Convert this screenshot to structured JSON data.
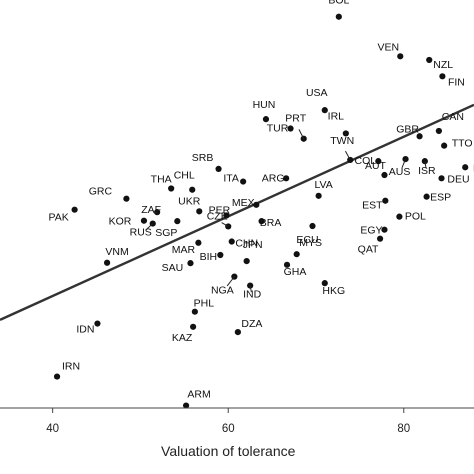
{
  "chart_data": {
    "type": "scatter",
    "title": "",
    "xlabel": "Valuation of tolerance",
    "ylabel": "",
    "xlim": [
      34,
      88
    ],
    "ylim": [
      0,
      1
    ],
    "x_ticks": [
      40,
      60,
      80
    ],
    "y_ticks": [],
    "grid": false,
    "legend": "none",
    "colors": {
      "point": "#111111",
      "line": "#333333",
      "axis": "#444444"
    },
    "fit_line": {
      "x": [
        34,
        88
      ],
      "y": [
        0.216,
        0.743
      ]
    },
    "points": [
      {
        "label": "BOL",
        "x": 72.6,
        "y": 0.959
      },
      {
        "label": "VEN",
        "x": 79.6,
        "y": 0.862
      },
      {
        "label": "NZL",
        "x": 82.9,
        "y": 0.853
      },
      {
        "label": "FIN",
        "x": 84.4,
        "y": 0.813
      },
      {
        "label": "HUN",
        "x": 64.3,
        "y": 0.708
      },
      {
        "label": "USA",
        "x": 71.0,
        "y": 0.73
      },
      {
        "label": "TUR",
        "x": 67.1,
        "y": 0.685
      },
      {
        "label": "PRT",
        "x": 68.6,
        "y": 0.66
      },
      {
        "label": "IRL",
        "x": 73.4,
        "y": 0.673
      },
      {
        "label": "GBR",
        "x": 81.8,
        "y": 0.666
      },
      {
        "label": "CAN",
        "x": 84.0,
        "y": 0.679
      },
      {
        "label": "TWN",
        "x": 73.9,
        "y": 0.608
      },
      {
        "label": "TTO",
        "x": 84.6,
        "y": 0.643
      },
      {
        "label": "SRB",
        "x": 58.9,
        "y": 0.586
      },
      {
        "label": "COL",
        "x": 77.1,
        "y": 0.605
      },
      {
        "label": "ISR",
        "x": 82.4,
        "y": 0.605
      },
      {
        "label": "NI",
        "x": 87.0,
        "y": 0.59
      },
      {
        "label": "THA",
        "x": 53.5,
        "y": 0.538
      },
      {
        "label": "CHL",
        "x": 55.9,
        "y": 0.535
      },
      {
        "label": "ITA",
        "x": 61.7,
        "y": 0.555
      },
      {
        "label": "ARG",
        "x": 66.6,
        "y": 0.563
      },
      {
        "label": "AUT",
        "x": 77.8,
        "y": 0.571
      },
      {
        "label": "AUS",
        "x": 80.2,
        "y": 0.61
      },
      {
        "label": "DEU",
        "x": 84.3,
        "y": 0.563
      },
      {
        "label": "GRC",
        "x": 48.4,
        "y": 0.513
      },
      {
        "label": "MEX",
        "x": 63.2,
        "y": 0.498
      },
      {
        "label": "LVA",
        "x": 70.3,
        "y": 0.52
      },
      {
        "label": "EST",
        "x": 77.9,
        "y": 0.508
      },
      {
        "label": "ESP",
        "x": 82.6,
        "y": 0.518
      },
      {
        "label": "PAK",
        "x": 42.5,
        "y": 0.486
      },
      {
        "label": "ZAF",
        "x": 51.9,
        "y": 0.48
      },
      {
        "label": "UKR",
        "x": 56.7,
        "y": 0.482
      },
      {
        "label": "PER",
        "x": 59.8,
        "y": 0.472
      },
      {
        "label": "KOR",
        "x": 50.4,
        "y": 0.459
      },
      {
        "label": "RUS",
        "x": 51.4,
        "y": 0.452
      },
      {
        "label": "SGP",
        "x": 54.2,
        "y": 0.458
      },
      {
        "label": "CZE",
        "x": 60.0,
        "y": 0.445
      },
      {
        "label": "BRA",
        "x": 63.8,
        "y": 0.458
      },
      {
        "label": "POL",
        "x": 79.5,
        "y": 0.469
      },
      {
        "label": "ECU",
        "x": 69.6,
        "y": 0.446
      },
      {
        "label": "EGY",
        "x": 77.8,
        "y": 0.437
      },
      {
        "label": "MAR",
        "x": 56.6,
        "y": 0.405
      },
      {
        "label": "CHN",
        "x": 60.4,
        "y": 0.408
      },
      {
        "label": "QAT",
        "x": 77.3,
        "y": 0.415
      },
      {
        "label": "VNM",
        "x": 46.2,
        "y": 0.356
      },
      {
        "label": "SAU",
        "x": 55.7,
        "y": 0.355
      },
      {
        "label": "BIH",
        "x": 59.1,
        "y": 0.375
      },
      {
        "label": "JPN",
        "x": 62.1,
        "y": 0.36
      },
      {
        "label": "MYS",
        "x": 67.8,
        "y": 0.377
      },
      {
        "label": "GHA",
        "x": 66.7,
        "y": 0.351
      },
      {
        "label": "NGA",
        "x": 60.7,
        "y": 0.322
      },
      {
        "label": "IND",
        "x": 62.5,
        "y": 0.3
      },
      {
        "label": "HKG",
        "x": 71.0,
        "y": 0.306
      },
      {
        "label": "PHL",
        "x": 56.2,
        "y": 0.236
      },
      {
        "label": "IDN",
        "x": 45.1,
        "y": 0.207
      },
      {
        "label": "KAZ",
        "x": 56.0,
        "y": 0.199
      },
      {
        "label": "DZA",
        "x": 61.1,
        "y": 0.186
      },
      {
        "label": "IRN",
        "x": 40.5,
        "y": 0.077
      },
      {
        "label": "ARM",
        "x": 55.2,
        "y": 0.006
      }
    ]
  }
}
